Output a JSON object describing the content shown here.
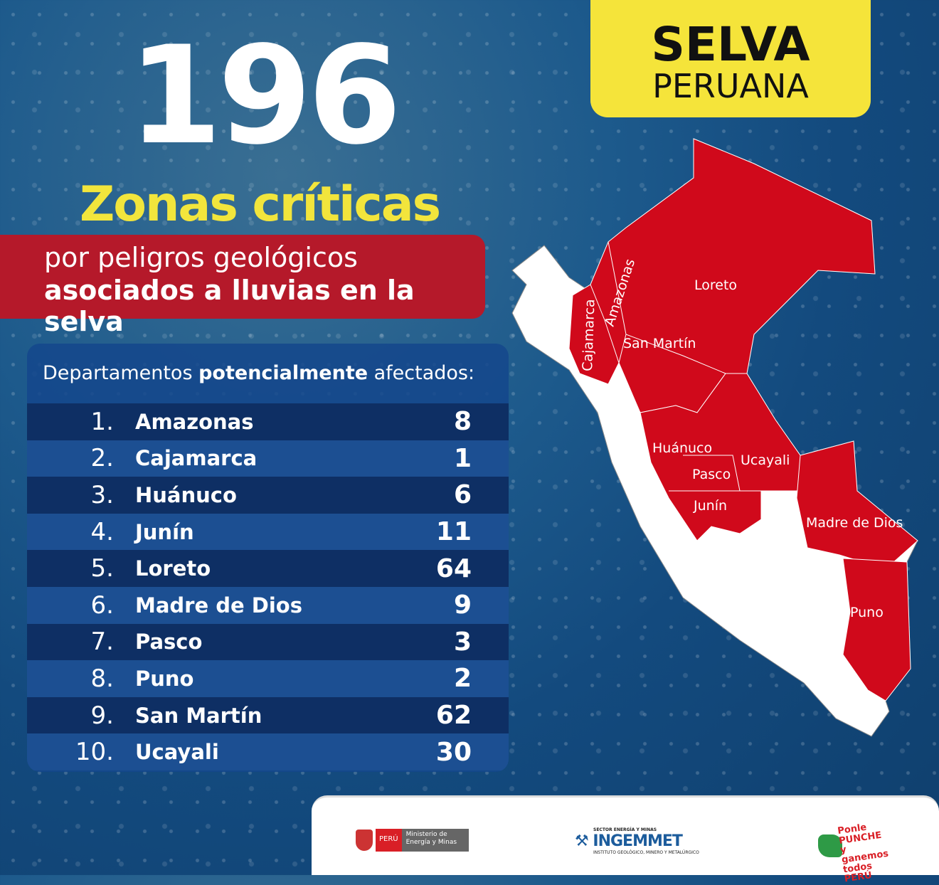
{
  "headline": {
    "number": "196",
    "title": "Zonas críticas",
    "subtitle_line1": "por peligros  geológicos",
    "subtitle_line2": "asociados a lluvias en la selva"
  },
  "badge": {
    "line1": "SELVA",
    "line2": "PERUANA"
  },
  "table": {
    "title_pre": "Departamentos ",
    "title_bold": "potencialmente",
    "title_post": " afectados:",
    "rows": [
      {
        "rank": "1.",
        "name": "Amazonas",
        "value": "8"
      },
      {
        "rank": "2.",
        "name": "Cajamarca",
        "value": "1"
      },
      {
        "rank": "3.",
        "name": "Huánuco",
        "value": "6"
      },
      {
        "rank": "4.",
        "name": "Junín",
        "value": "11"
      },
      {
        "rank": "5.",
        "name": "Loreto",
        "value": "64"
      },
      {
        "rank": "6.",
        "name": "Madre de Dios",
        "value": "9"
      },
      {
        "rank": "7.",
        "name": "Pasco",
        "value": "3"
      },
      {
        "rank": "8.",
        "name": "Puno",
        "value": "2"
      },
      {
        "rank": "9.",
        "name": "San Martín",
        "value": "62"
      },
      {
        "rank": "10.",
        "name": "Ucayali",
        "value": "30"
      }
    ]
  },
  "map": {
    "labels": [
      "Loreto",
      "Amazonas",
      "Cajamarca",
      "San Martín",
      "Huánuco",
      "Ucayali",
      "Pasco",
      "Junín",
      "Madre de Dios",
      "Puno"
    ],
    "highlight_color": "#d0091b",
    "base_color": "#ffffff"
  },
  "footer": {
    "logo1": {
      "peru": "PERÚ",
      "ministry": "Ministerio de Energía y Minas"
    },
    "logo2": {
      "sector": "SECTOR ENERGÍA Y MINAS",
      "name": "INGEMMET",
      "full": "INSTITUTO GEOLÓGICO, MINERO Y METALÚRGICO"
    },
    "logo3": {
      "text": "Ponle PUNCHE y ganemos todos PERÚ"
    }
  }
}
